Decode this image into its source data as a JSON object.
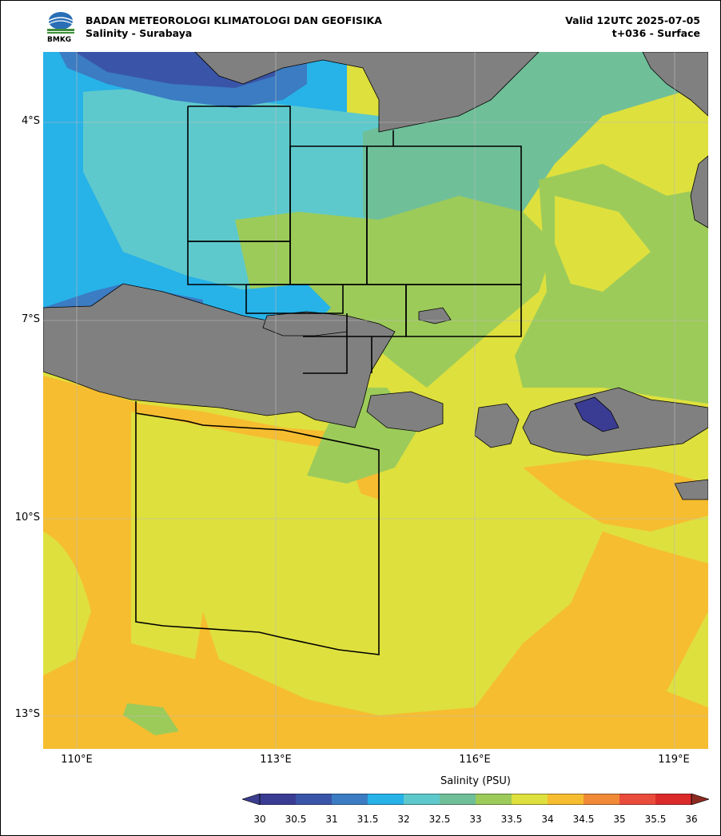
{
  "header": {
    "agency": "BADAN METEOROLOGI KLIMATOLOGI DAN GEOFISIKA",
    "subtitle": "Salinity - Surabaya",
    "valid": "Valid 12UTC 2025-07-05",
    "forecast": "t+036 - Surface",
    "logo_text": "BMKG"
  },
  "map": {
    "lon_range": [
      109.5,
      119.5
    ],
    "lat_range": [
      -13.5,
      -3.0
    ],
    "lat_labels": [
      {
        "lat": -4,
        "label": "4°S"
      },
      {
        "lat": -7,
        "label": "7°S"
      },
      {
        "lat": -10,
        "label": "10°S"
      },
      {
        "lat": -13,
        "label": "13°S"
      }
    ],
    "lon_labels": [
      {
        "lon": 110,
        "label": "110°E"
      },
      {
        "lon": 113,
        "label": "113°E"
      },
      {
        "lon": 116,
        "label": "116°E"
      },
      {
        "lon": 119,
        "label": "119°E"
      }
    ],
    "land_color": "#808080",
    "grid": true
  },
  "colorbar": {
    "title": "Salinity (PSU)",
    "levels": [
      "30",
      "30.5",
      "31",
      "31.5",
      "32",
      "32.5",
      "33",
      "33.5",
      "34",
      "34.5",
      "35",
      "35.5",
      "36"
    ],
    "colors": [
      "#3a3c94",
      "#3a55a8",
      "#3b7cc3",
      "#27b2e8",
      "#5ec9cc",
      "#6fbf99",
      "#9ccb5a",
      "#dee03e",
      "#f6bd30",
      "#f08a36",
      "#ea4c3c",
      "#dc2a2a"
    ],
    "under_color": "#3b3d8e",
    "over_color": "#8c2a22"
  }
}
